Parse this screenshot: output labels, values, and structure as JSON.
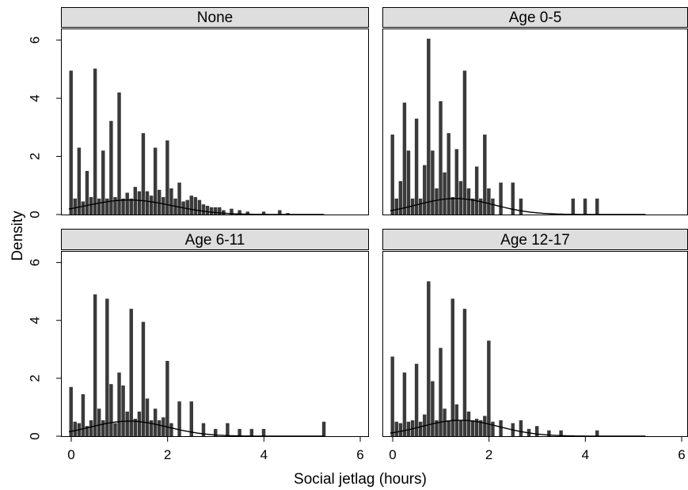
{
  "figure": {
    "xlabel": "Social jetlag (hours)",
    "ylabel": "Density",
    "xlim": [
      0,
      6
    ],
    "ylim": [
      0,
      6.4
    ],
    "x_ticks": [
      "0",
      "2",
      "4",
      "6"
    ],
    "y_ticks": [
      "0",
      "2",
      "4",
      "6"
    ],
    "bar_color": "#3a3a3a",
    "curve_color": "#000000",
    "header_fill": "#dedede"
  },
  "chart_data": [
    {
      "type": "bar",
      "title": "None",
      "bin_width": 0.083,
      "x": [
        0.0,
        0.083,
        0.167,
        0.25,
        0.333,
        0.417,
        0.5,
        0.583,
        0.667,
        0.75,
        0.833,
        0.917,
        1.0,
        1.083,
        1.167,
        1.25,
        1.333,
        1.417,
        1.5,
        1.583,
        1.667,
        1.75,
        1.833,
        1.917,
        2.0,
        2.083,
        2.167,
        2.25,
        2.333,
        2.417,
        2.5,
        2.583,
        2.667,
        2.75,
        2.833,
        2.917,
        3.0,
        3.083,
        3.167,
        3.333,
        3.5,
        3.667,
        4.0,
        4.333,
        4.5
      ],
      "values": [
        4.95,
        0.55,
        2.3,
        0.45,
        1.5,
        0.6,
        5.02,
        0.55,
        2.2,
        0.55,
        3.22,
        0.6,
        4.2,
        0.55,
        0.75,
        0.55,
        0.95,
        0.8,
        2.8,
        0.8,
        0.65,
        2.3,
        0.85,
        0.6,
        2.55,
        0.9,
        0.55,
        1.1,
        0.45,
        0.5,
        0.65,
        0.6,
        0.5,
        0.35,
        0.3,
        0.25,
        0.25,
        0.25,
        0.15,
        0.2,
        0.15,
        0.1,
        0.1,
        0.15,
        0.05
      ],
      "density_curve": {
        "mean": 1.2,
        "sd": 0.9,
        "peak": 0.5
      }
    },
    {
      "type": "bar",
      "title": "Age 0-5",
      "bin_width": 0.083,
      "x": [
        0.0,
        0.083,
        0.167,
        0.25,
        0.333,
        0.417,
        0.5,
        0.583,
        0.667,
        0.75,
        0.833,
        0.917,
        1.0,
        1.083,
        1.167,
        1.25,
        1.333,
        1.417,
        1.5,
        1.583,
        1.667,
        1.75,
        1.833,
        1.917,
        2.0,
        2.083,
        2.25,
        2.5,
        2.667,
        3.75,
        4.0,
        4.25
      ],
      "values": [
        2.75,
        0.55,
        1.15,
        3.85,
        2.2,
        0.55,
        3.3,
        0.55,
        1.7,
        6.05,
        2.2,
        0.9,
        3.9,
        1.45,
        2.8,
        0.6,
        2.25,
        1.15,
        4.95,
        0.9,
        0.55,
        1.65,
        0.55,
        2.75,
        0.9,
        0.55,
        1.1,
        1.1,
        0.55,
        0.55,
        0.55,
        0.55
      ],
      "density_curve": {
        "mean": 1.3,
        "sd": 0.8,
        "peak": 0.55
      }
    },
    {
      "type": "bar",
      "title": "Age 6-11",
      "bin_width": 0.083,
      "x": [
        0.0,
        0.083,
        0.167,
        0.25,
        0.333,
        0.417,
        0.5,
        0.583,
        0.667,
        0.75,
        0.833,
        0.917,
        1.0,
        1.083,
        1.167,
        1.25,
        1.333,
        1.417,
        1.5,
        1.583,
        1.667,
        1.75,
        1.833,
        1.917,
        2.0,
        2.083,
        2.25,
        2.5,
        2.75,
        3.0,
        3.25,
        3.5,
        3.75,
        4.0,
        5.25
      ],
      "values": [
        1.7,
        0.5,
        0.45,
        1.45,
        0.35,
        0.55,
        4.9,
        0.95,
        0.55,
        4.75,
        1.8,
        0.45,
        2.2,
        1.75,
        0.85,
        4.4,
        0.6,
        0.85,
        3.95,
        1.3,
        0.55,
        0.95,
        0.55,
        0.65,
        2.6,
        0.45,
        1.2,
        1.2,
        0.45,
        0.25,
        0.45,
        0.25,
        0.25,
        0.25,
        0.5
      ],
      "density_curve": {
        "mean": 1.2,
        "sd": 0.8,
        "peak": 0.52
      }
    },
    {
      "type": "bar",
      "title": "Age 12-17",
      "bin_width": 0.083,
      "x": [
        0.0,
        0.083,
        0.167,
        0.25,
        0.333,
        0.417,
        0.5,
        0.583,
        0.667,
        0.75,
        0.833,
        0.917,
        1.0,
        1.083,
        1.167,
        1.25,
        1.333,
        1.417,
        1.5,
        1.583,
        1.667,
        1.75,
        1.833,
        1.917,
        2.0,
        2.083,
        2.25,
        2.5,
        2.667,
        2.833,
        3.0,
        3.25,
        3.5,
        4.25
      ],
      "values": [
        2.75,
        0.5,
        0.45,
        2.2,
        0.5,
        0.55,
        2.5,
        0.5,
        0.75,
        5.35,
        1.9,
        0.55,
        3.05,
        0.95,
        0.55,
        4.75,
        1.1,
        0.55,
        4.4,
        0.85,
        0.55,
        0.6,
        0.55,
        0.7,
        3.3,
        0.5,
        0.55,
        0.45,
        0.55,
        0.25,
        0.35,
        0.2,
        0.2,
        0.2
      ],
      "density_curve": {
        "mean": 1.4,
        "sd": 0.8,
        "peak": 0.55
      }
    }
  ]
}
